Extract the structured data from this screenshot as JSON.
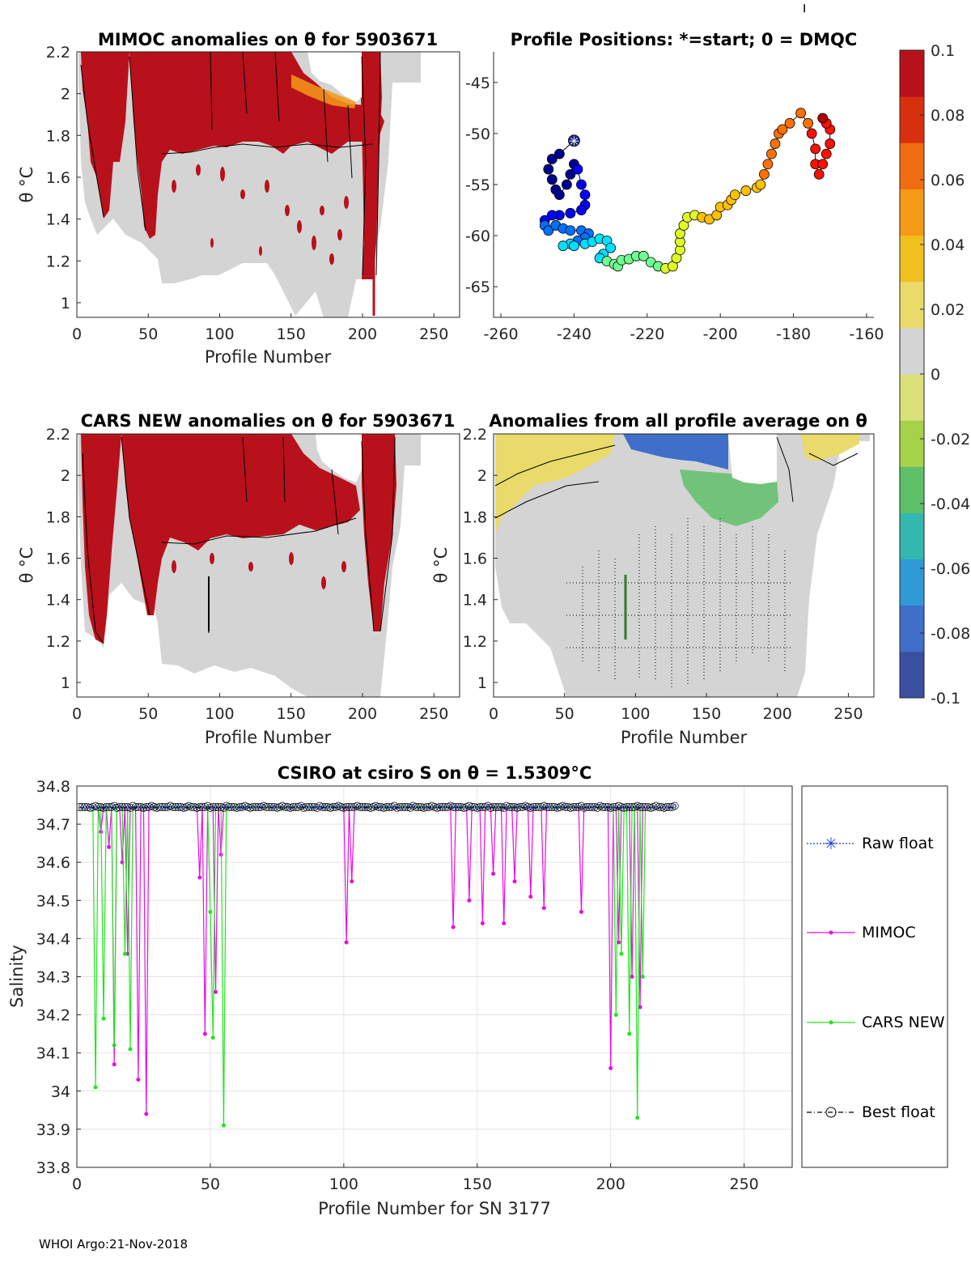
{
  "footer": "WHOI Argo:21-Nov-2018",
  "colorbar": {
    "ticks": [
      "0.1",
      "0.08",
      "0.06",
      "0.04",
      "0.02",
      "0",
      "-0.02",
      "-0.04",
      "-0.06",
      "-0.08",
      "-0.1"
    ],
    "range": [
      -0.1,
      0.1
    ],
    "colors": [
      "#3b4fa0",
      "#3f6fc8",
      "#2f9ad6",
      "#33b8b0",
      "#5fc06a",
      "#a6d24a",
      "#d9e07a",
      "#d4d4d4",
      "#e9da6a",
      "#f0c020",
      "#f59a16",
      "#f06c10",
      "#d8300f",
      "#b8111b"
    ]
  },
  "chart_data": [
    {
      "id": "mimoc",
      "type": "heatmap",
      "title": "MIMOC anomalies on θ  for 5903671",
      "xlabel": "Profile Number",
      "ylabel": "θ °C",
      "xlim": [
        0,
        268
      ],
      "ylim": [
        0.93,
        2.2
      ],
      "xticks": [
        "0",
        "50",
        "100",
        "150",
        "200",
        "250"
      ],
      "yticks": [
        "2.2",
        "2",
        "1.8",
        "1.6",
        "1.4",
        "1.2",
        "1"
      ]
    },
    {
      "id": "positions",
      "type": "scatter",
      "title": "Profile Positions: *=start; 0 = DMQC",
      "xlim": [
        -262,
        -158
      ],
      "ylim": [
        -68,
        -42
      ],
      "xticks": [
        "-260",
        "-240",
        "-220",
        "-200",
        "-180",
        "-160"
      ],
      "yticks": [
        "-45",
        "-50",
        "-55",
        "-60",
        "-65"
      ],
      "start": [
        -240,
        -50.7
      ],
      "track": [
        [
          -240,
          -50.7
        ],
        [
          -244,
          -52
        ],
        [
          -246,
          -52.5
        ],
        [
          -247,
          -53.5
        ],
        [
          -246,
          -54.5
        ],
        [
          -245,
          -55.5
        ],
        [
          -244,
          -56
        ],
        [
          -242,
          -55
        ],
        [
          -241,
          -54
        ],
        [
          -240,
          -53
        ],
        [
          -239,
          -53.5
        ],
        [
          -238,
          -55
        ],
        [
          -237,
          -56
        ],
        [
          -237,
          -57
        ],
        [
          -238,
          -57.5
        ],
        [
          -241,
          -57.8
        ],
        [
          -244,
          -58
        ],
        [
          -246,
          -58
        ],
        [
          -248,
          -58.5
        ],
        [
          -248,
          -59
        ],
        [
          -247,
          -59.5
        ],
        [
          -245,
          -59
        ],
        [
          -243,
          -59.3
        ],
        [
          -241,
          -59.5
        ],
        [
          -238,
          -59.5
        ],
        [
          -236,
          -59.8
        ],
        [
          -237,
          -60.2
        ],
        [
          -239,
          -60.5
        ],
        [
          -241,
          -60.8
        ],
        [
          -243,
          -61
        ],
        [
          -240,
          -61
        ],
        [
          -237,
          -60.8
        ],
        [
          -235,
          -60.6
        ],
        [
          -233,
          -60.3
        ],
        [
          -231,
          -60.5
        ],
        [
          -230,
          -61.2
        ],
        [
          -232,
          -61.8
        ],
        [
          -233,
          -62.2
        ],
        [
          -231,
          -62.5
        ],
        [
          -229,
          -62.8
        ],
        [
          -228,
          -63
        ],
        [
          -227,
          -62.4
        ],
        [
          -225,
          -62.3
        ],
        [
          -223,
          -62
        ],
        [
          -221,
          -62
        ],
        [
          -219,
          -62.6
        ],
        [
          -217,
          -63
        ],
        [
          -215,
          -63.2
        ],
        [
          -213,
          -63
        ],
        [
          -212,
          -62.2
        ],
        [
          -211,
          -61.4
        ],
        [
          -211,
          -60.6
        ],
        [
          -211,
          -59.8
        ],
        [
          -210,
          -59
        ],
        [
          -209,
          -58.2
        ],
        [
          -207,
          -58
        ],
        [
          -205,
          -58.2
        ],
        [
          -203,
          -58.4
        ],
        [
          -201,
          -58
        ],
        [
          -200,
          -57.2
        ],
        [
          -198,
          -57
        ],
        [
          -197,
          -56.5
        ],
        [
          -196,
          -56
        ],
        [
          -193,
          -55.6
        ],
        [
          -190,
          -55.3
        ],
        [
          -189,
          -55
        ],
        [
          -188,
          -54
        ],
        [
          -187,
          -53
        ],
        [
          -186,
          -52
        ],
        [
          -185,
          -51
        ],
        [
          -184,
          -50
        ],
        [
          -183,
          -49.6
        ],
        [
          -181,
          -49
        ],
        [
          -178,
          -48
        ],
        [
          -176,
          -49
        ],
        [
          -175,
          -50
        ],
        [
          -174,
          -51.5
        ],
        [
          -174,
          -53
        ],
        [
          -173,
          -54
        ],
        [
          -172,
          -53
        ],
        [
          -171,
          -52
        ],
        [
          -170,
          -51
        ],
        [
          -170,
          -49.6
        ],
        [
          -171,
          -49
        ],
        [
          -172,
          -48.5
        ]
      ],
      "outlier": [
        -177,
        -37.5
      ]
    },
    {
      "id": "cars",
      "type": "heatmap",
      "title": "CARS NEW anomalies on θ for 5903671",
      "xlabel": "Profile Number",
      "ylabel": "θ °C",
      "xlim": [
        0,
        268
      ],
      "ylim": [
        0.93,
        2.2
      ],
      "xticks": [
        "0",
        "50",
        "100",
        "150",
        "200",
        "250"
      ],
      "yticks": [
        "2.2",
        "2",
        "1.8",
        "1.6",
        "1.4",
        "1.2",
        "1"
      ]
    },
    {
      "id": "avg",
      "type": "heatmap",
      "title": "Anomalies from all profile average on θ",
      "xlabel": "Profile Number",
      "ylabel": "θ °C",
      "xlim": [
        0,
        268
      ],
      "ylim": [
        0.93,
        2.2
      ],
      "xticks": [
        "0",
        "50",
        "100",
        "150",
        "200",
        "250"
      ],
      "yticks": [
        "2.2",
        "2",
        "1.8",
        "1.6",
        "1.4",
        "1.2",
        "1"
      ]
    },
    {
      "id": "salinity",
      "type": "line",
      "title": "CSIRO at csiro S on θ = 1.5309°C",
      "xlabel": "Profile Number for SN 3177",
      "ylabel": "Salinity",
      "xlim": [
        0,
        268
      ],
      "ylim": [
        33.8,
        34.8
      ],
      "xticks": [
        "0",
        "50",
        "100",
        "150",
        "200",
        "250"
      ],
      "yticks": [
        "34.8",
        "34.7",
        "34.6",
        "34.5",
        "34.4",
        "34.3",
        "34.2",
        "34.1",
        "34",
        "33.9",
        "33.8"
      ],
      "baseline": 34.745,
      "float_range": [
        1,
        224
      ],
      "mimoc_dips": [
        [
          9,
          34.68
        ],
        [
          12,
          34.64
        ],
        [
          14,
          34.07
        ],
        [
          17,
          34.6
        ],
        [
          19,
          34.36
        ],
        [
          23,
          34.03
        ],
        [
          26,
          33.94
        ],
        [
          46,
          34.56
        ],
        [
          48,
          34.15
        ],
        [
          52,
          34.26
        ],
        [
          54,
          34.62
        ],
        [
          101,
          34.39
        ],
        [
          103,
          34.55
        ],
        [
          141,
          34.43
        ],
        [
          147,
          34.5
        ],
        [
          152,
          34.44
        ],
        [
          156,
          34.57
        ],
        [
          160,
          34.44
        ],
        [
          164,
          34.55
        ],
        [
          170,
          34.51
        ],
        [
          175,
          34.48
        ],
        [
          189,
          34.47
        ],
        [
          200,
          34.06
        ],
        [
          203,
          34.39
        ],
        [
          208,
          34.3
        ],
        [
          211,
          34.22
        ]
      ],
      "cars_dips": [
        [
          7,
          34.01
        ],
        [
          10,
          34.19
        ],
        [
          14,
          34.12
        ],
        [
          18,
          34.36
        ],
        [
          20,
          34.11
        ],
        [
          50,
          34.47
        ],
        [
          51,
          34.14
        ],
        [
          55,
          33.91
        ],
        [
          202,
          34.2
        ],
        [
          204,
          34.36
        ],
        [
          207,
          34.15
        ],
        [
          210,
          33.93
        ],
        [
          212,
          34.3
        ]
      ],
      "legend": [
        "Raw float",
        "MIMOC",
        "CARS NEW",
        "Best float"
      ]
    }
  ]
}
